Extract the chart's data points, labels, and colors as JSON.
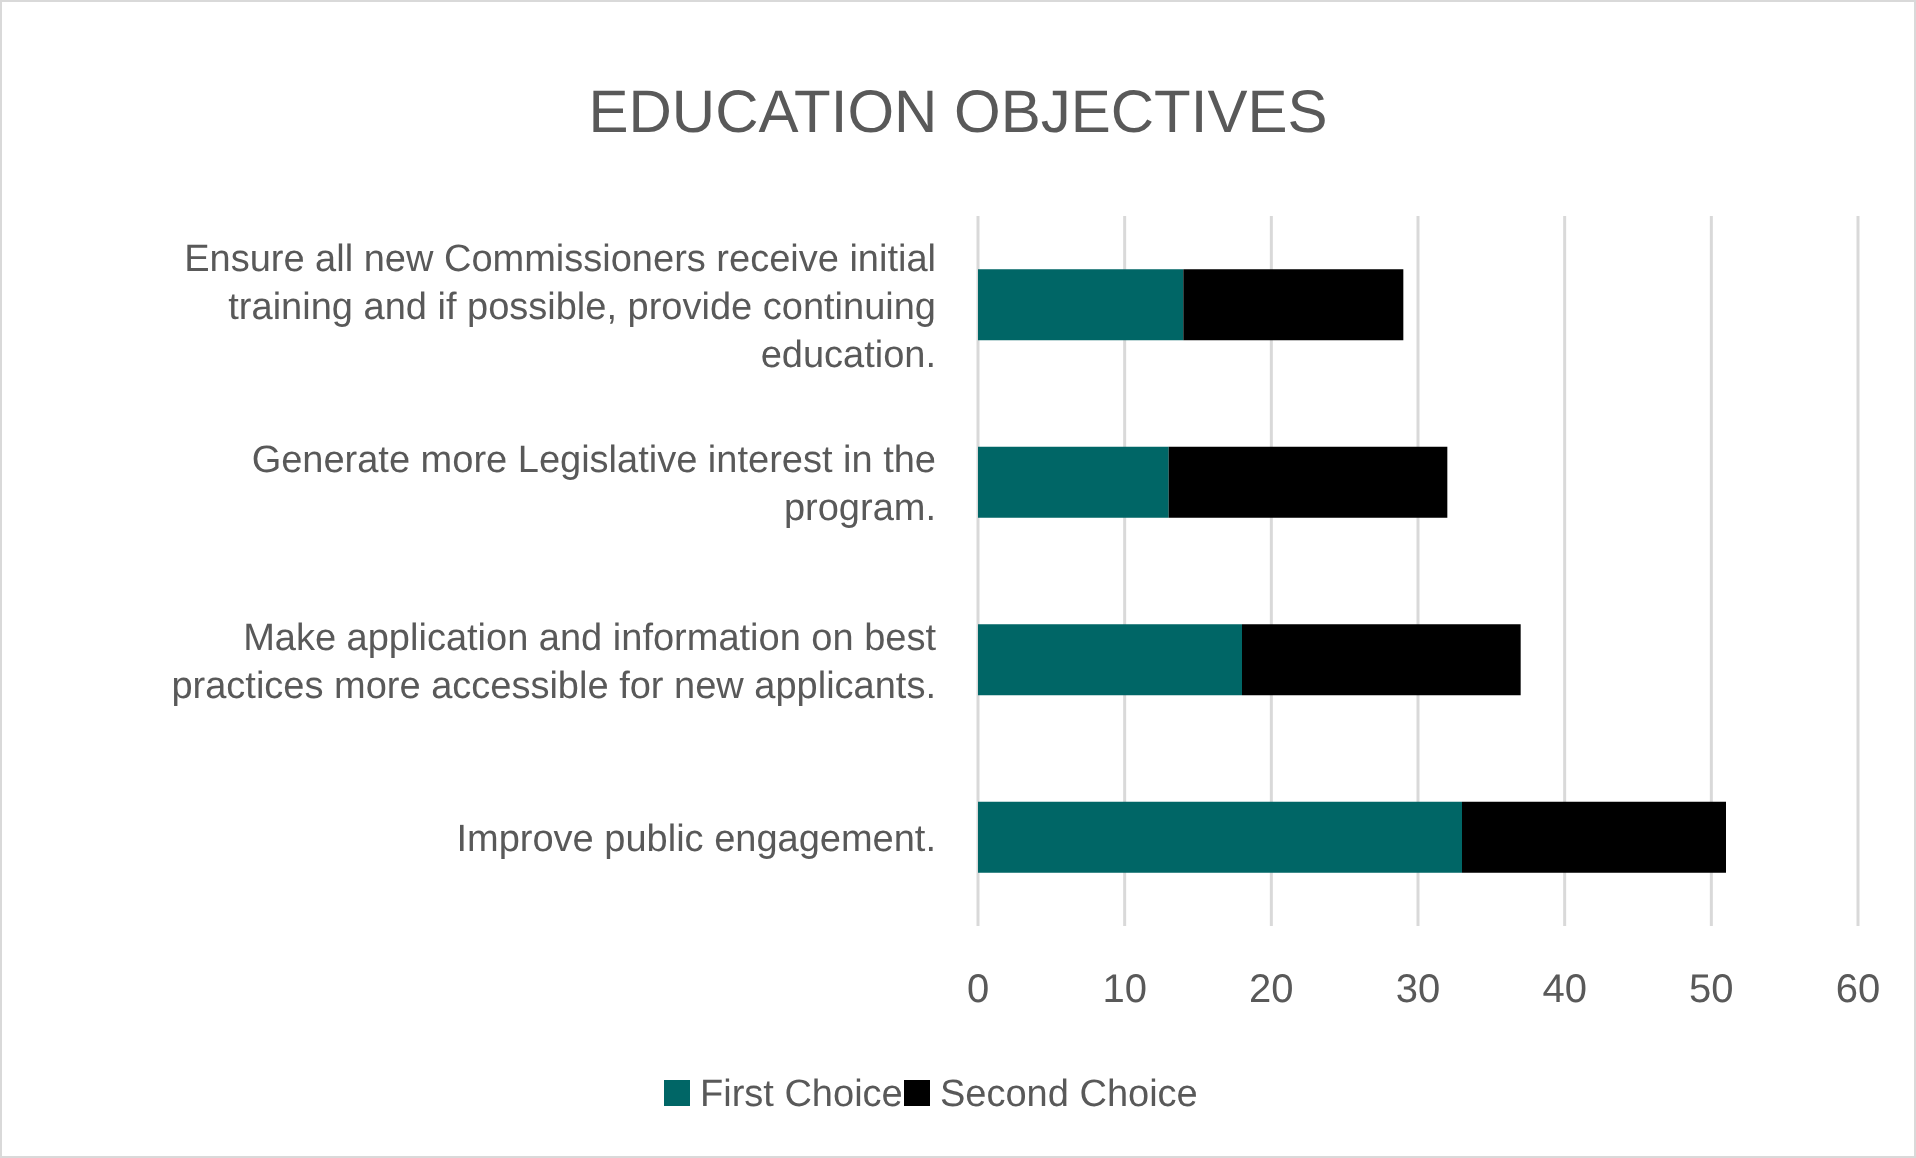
{
  "chart_data": {
    "type": "bar",
    "orientation": "horizontal",
    "stacked": true,
    "title": "EDUCATION OBJECTIVES",
    "categories": [
      "Ensure all new Commissioners receive initial training and if possible, provide continuing education.",
      "Generate more Legislative interest in the program.",
      "Make application and information on best practices more accessible for new applicants.",
      "Improve public engagement."
    ],
    "series": [
      {
        "name": "First Choice",
        "color": "#006666",
        "values": [
          14,
          13,
          18,
          33
        ]
      },
      {
        "name": "Second Choice",
        "color": "#000000",
        "values": [
          15,
          19,
          19,
          18
        ]
      }
    ],
    "xlim": [
      0,
      60
    ],
    "xticks": [
      0,
      10,
      20,
      30,
      40,
      50,
      60
    ],
    "grid": "x",
    "legend": "bottom"
  }
}
